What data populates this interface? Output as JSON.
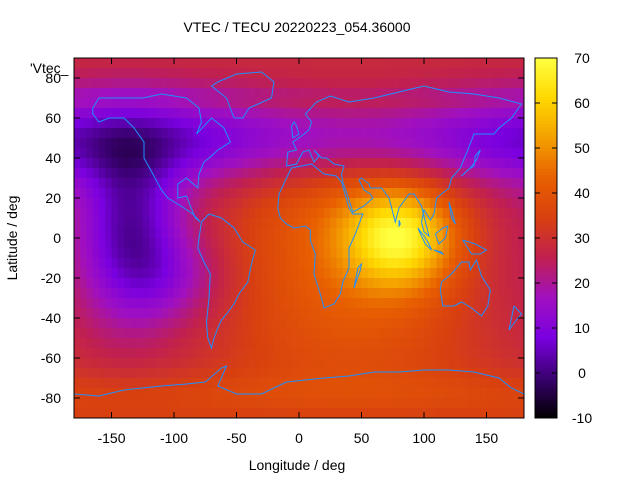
{
  "chart_data": {
    "type": "heatmap",
    "title": "VTEC / TECU 20220223_054.36000",
    "xlabel": "Longitude / deg",
    "ylabel": "Latitude / deg",
    "xlim": [
      -180,
      180
    ],
    "ylim": [
      -90,
      90
    ],
    "x_ticks": [
      -150,
      -100,
      -50,
      0,
      50,
      100,
      150
    ],
    "y_ticks": [
      -80,
      -60,
      -40,
      -20,
      0,
      20,
      40,
      60,
      80
    ],
    "colorbar": {
      "range": [
        -10,
        70
      ],
      "ticks": [
        -10,
        0,
        10,
        20,
        30,
        40,
        50,
        60,
        70
      ],
      "palette": [
        "#000000",
        "#3a0070",
        "#7a00e0",
        "#a010c0",
        "#c02050",
        "#d84010",
        "#e86000",
        "#f4a000",
        "#ffd800",
        "#ffff40"
      ]
    },
    "key_label": "'Vtec_",
    "grid": false,
    "coastline_color": "#1e90ff",
    "peak": {
      "lon": 80,
      "lat": 0,
      "value": 68
    }
  }
}
